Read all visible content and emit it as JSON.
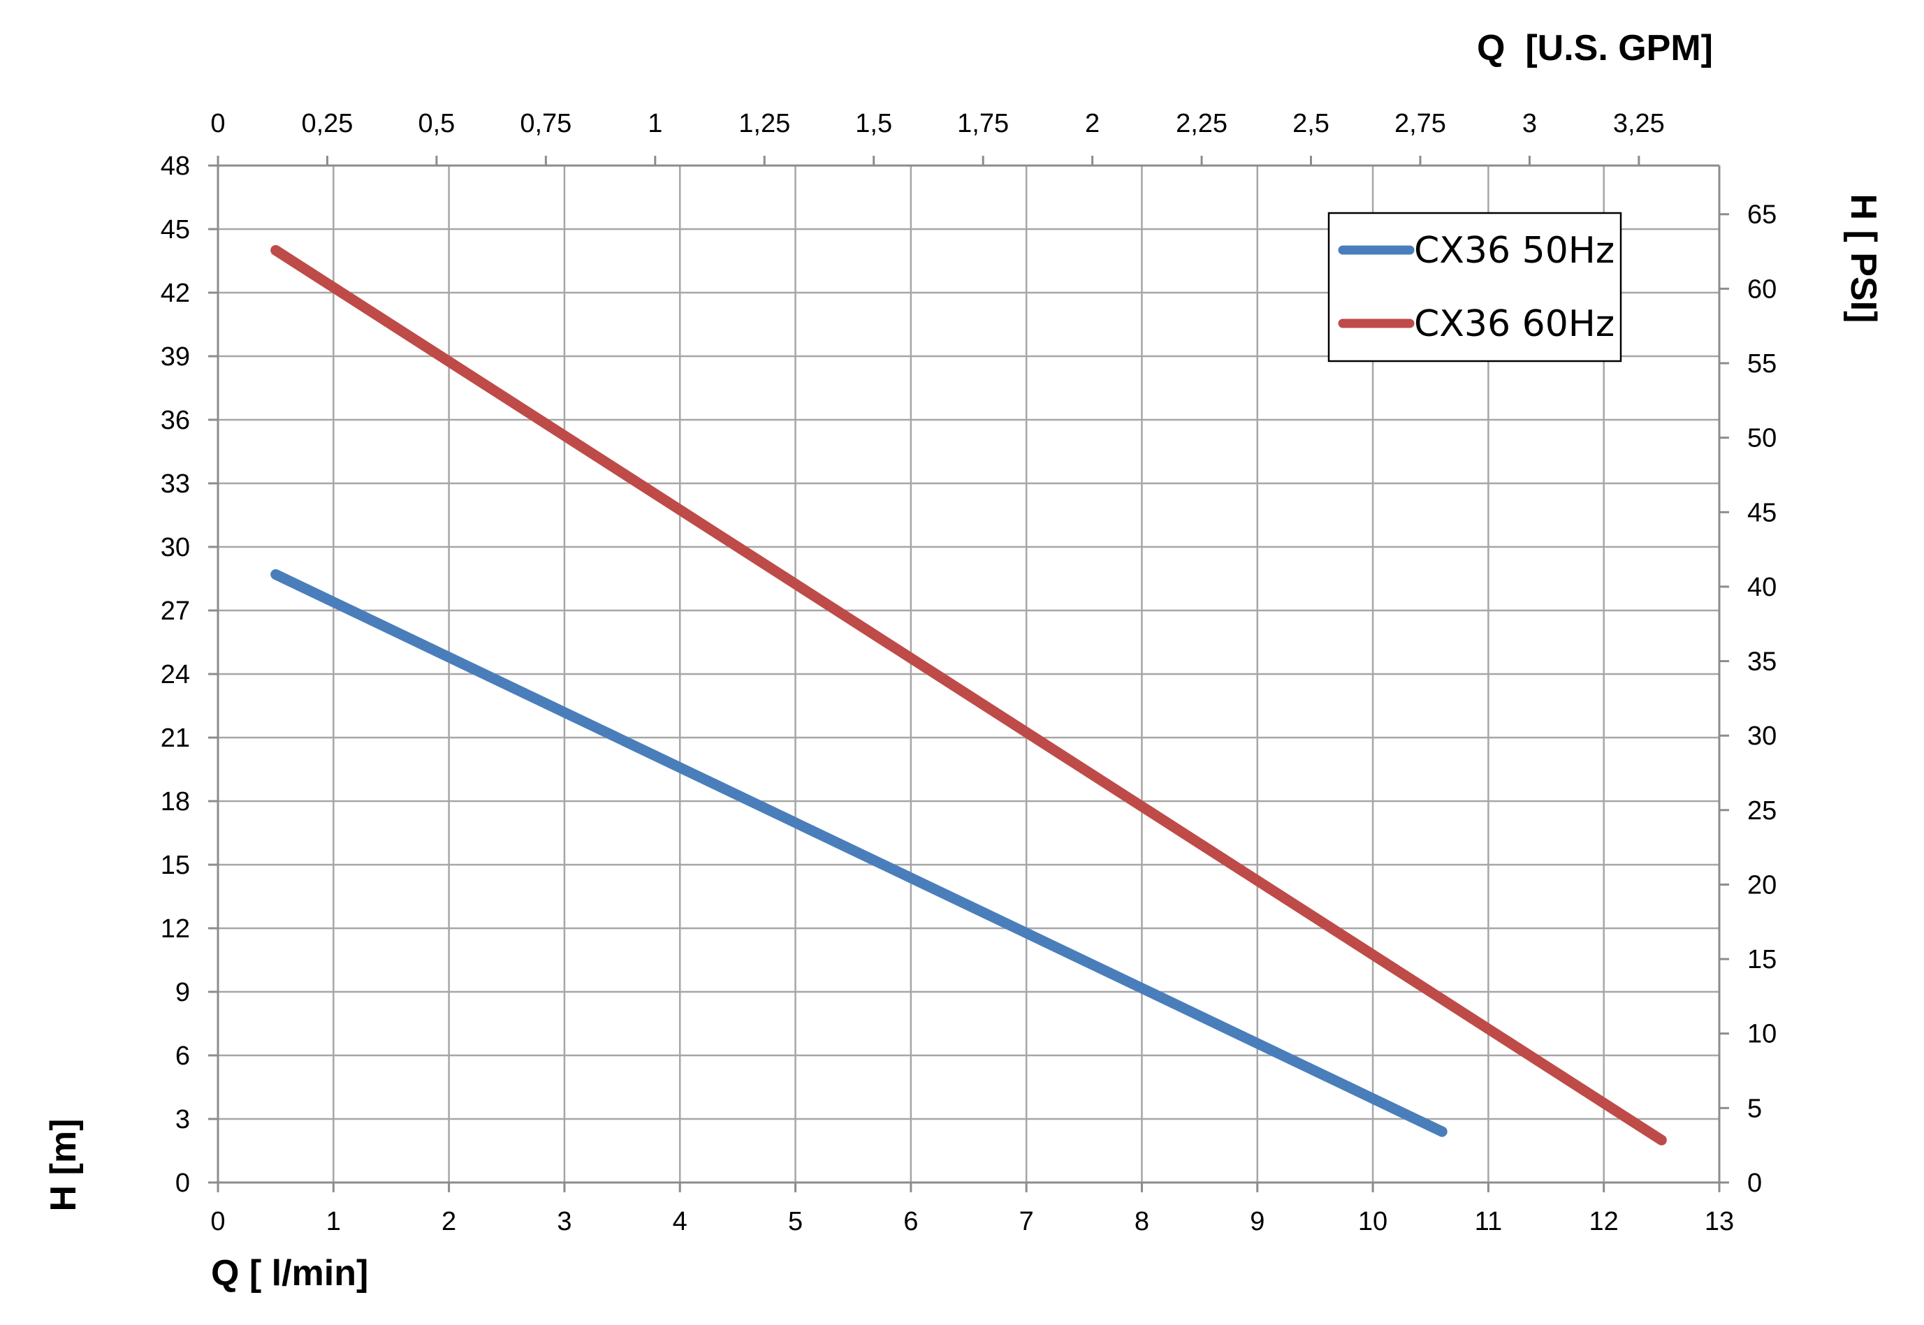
{
  "chart_data": {
    "type": "line",
    "xlabel": "Q [ l/min]",
    "x2label": "Q  [U.S. GPM]",
    "ylabel": "H [m]",
    "y2label": "H [ PSI]",
    "xlim": [
      0,
      13
    ],
    "ylim": [
      0,
      48
    ],
    "x2lim": [
      0,
      3.434
    ],
    "y2lim": [
      0,
      68.27
    ],
    "x_ticks": [
      0,
      1,
      2,
      3,
      4,
      5,
      6,
      7,
      8,
      9,
      10,
      11,
      12,
      13
    ],
    "x_tick_labels": [
      "0",
      "1",
      "2",
      "3",
      "4",
      "5",
      "6",
      "7",
      "8",
      "9",
      "10",
      "11",
      "12",
      "13"
    ],
    "y_ticks": [
      0,
      3,
      6,
      9,
      12,
      15,
      18,
      21,
      24,
      27,
      30,
      33,
      36,
      39,
      42,
      45,
      48
    ],
    "y_tick_labels": [
      "0",
      "3",
      "6",
      "9",
      "12",
      "15",
      "18",
      "21",
      "24",
      "27",
      "30",
      "33",
      "36",
      "39",
      "42",
      "45",
      "48"
    ],
    "x2_ticks": [
      0,
      0.25,
      0.5,
      0.75,
      1,
      1.25,
      1.5,
      1.75,
      2,
      2.25,
      2.5,
      2.75,
      3,
      3.25
    ],
    "x2_tick_labels": [
      "0",
      "0,25",
      "0,5",
      "0,75",
      "1",
      "1,25",
      "1,5",
      "1,75",
      "2",
      "2,25",
      "2,5",
      "2,75",
      "3",
      "3,25"
    ],
    "y2_ticks": [
      0,
      5,
      10,
      15,
      20,
      25,
      30,
      35,
      40,
      45,
      50,
      55,
      60,
      65
    ],
    "y2_tick_labels": [
      "0",
      "5",
      "10",
      "15",
      "20",
      "25",
      "30",
      "35",
      "40",
      "45",
      "50",
      "55",
      "60",
      "65"
    ],
    "grid": true,
    "legend_position": "top-right",
    "series": [
      {
        "name": "CX36 50Hz",
        "color": "#4a7ebb",
        "x": [
          0.5,
          10.6
        ],
        "y": [
          28.7,
          2.4
        ]
      },
      {
        "name": "CX36 60Hz",
        "color": "#be4b48",
        "x": [
          0.5,
          12.5
        ],
        "y": [
          44.0,
          2.0
        ]
      }
    ]
  }
}
